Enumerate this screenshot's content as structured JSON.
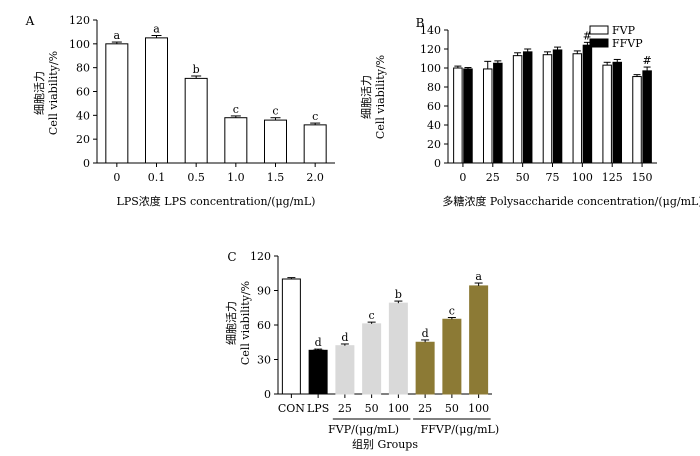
{
  "chart_data": [
    {
      "panel": "A",
      "type": "bar",
      "categories": [
        "0",
        "0.1",
        "0.5",
        "1.0",
        "1.5",
        "2.0"
      ],
      "series": [
        {
          "values": [
            100,
            105,
            71,
            38,
            36,
            32
          ],
          "errors": [
            1.5,
            2.0,
            2.0,
            1.5,
            2.0,
            1.5
          ],
          "labels": [
            "a",
            "a",
            "b",
            "c",
            "c",
            "c"
          ],
          "color": "#ffffff"
        }
      ],
      "xlabel": "LPS浓度 LPS concentration/(μg/mL)",
      "ylabel_cn": "细胞活力",
      "ylabel": "Cell viability/%",
      "ylim": [
        0,
        120
      ],
      "yticks": [
        0,
        20,
        40,
        60,
        80,
        100,
        120
      ],
      "grid": false
    },
    {
      "panel": "B",
      "type": "bar",
      "categories": [
        "0",
        "25",
        "50",
        "75",
        "100",
        "125",
        "150"
      ],
      "series": [
        {
          "name": "FVP",
          "color": "#ffffff",
          "values": [
            100,
            99,
            113,
            114,
            115,
            103,
            91
          ],
          "errors": [
            2,
            8,
            3,
            3,
            3,
            3,
            2
          ],
          "labels": [
            "",
            "",
            "",
            "",
            "",
            "",
            ""
          ]
        },
        {
          "name": "FFVP",
          "color": "#000000",
          "values": [
            99,
            105,
            117,
            119,
            124,
            106,
            97
          ],
          "errors": [
            1.5,
            2.5,
            3,
            3,
            3,
            3,
            4
          ],
          "labels": [
            "",
            "",
            "",
            "",
            "#",
            "",
            "#"
          ]
        }
      ],
      "xlabel": "多糖浓度 Polysaccharide concentration/(μg/mL)",
      "ylabel_cn": "细胞活力",
      "ylabel": "Cell viability/%",
      "ylim": [
        0,
        140
      ],
      "yticks": [
        0,
        20,
        40,
        60,
        80,
        100,
        120,
        140
      ],
      "legend": "top-right",
      "grid": false
    },
    {
      "panel": "C",
      "type": "bar",
      "categories": [
        "CON",
        "LPS",
        "25",
        "50",
        "100",
        "25",
        "50",
        "100"
      ],
      "bars": [
        {
          "value": 100,
          "error": 1.2,
          "label": "",
          "color": "#ffffff"
        },
        {
          "value": 38,
          "error": 1.0,
          "label": "d",
          "extra": "**",
          "color": "#000000"
        },
        {
          "value": 42,
          "error": 1.5,
          "label": "d",
          "color": "#d9d9d9"
        },
        {
          "value": 61,
          "error": 1.5,
          "label": "c",
          "color": "#d9d9d9"
        },
        {
          "value": 79,
          "error": 1.8,
          "label": "b",
          "color": "#d9d9d9"
        },
        {
          "value": 45,
          "error": 2.0,
          "label": "d",
          "color": "#8c7a35"
        },
        {
          "value": 65,
          "error": 1.5,
          "label": "c",
          "color": "#8c7a35"
        },
        {
          "value": 94,
          "error": 2.5,
          "label": "a",
          "color": "#8c7a35"
        }
      ],
      "groups": [
        {
          "label": "FVP/(μg/mL)",
          "from": 2,
          "to": 4
        },
        {
          "label": "FFVP/(μg/mL)",
          "from": 5,
          "to": 7
        }
      ],
      "xlabel": "组别  Groups",
      "ylabel_cn": "细胞活力",
      "ylabel": "Cell viability/%",
      "ylim": [
        0,
        120
      ],
      "yticks": [
        0,
        30,
        60,
        90,
        120
      ],
      "grid": false
    }
  ]
}
